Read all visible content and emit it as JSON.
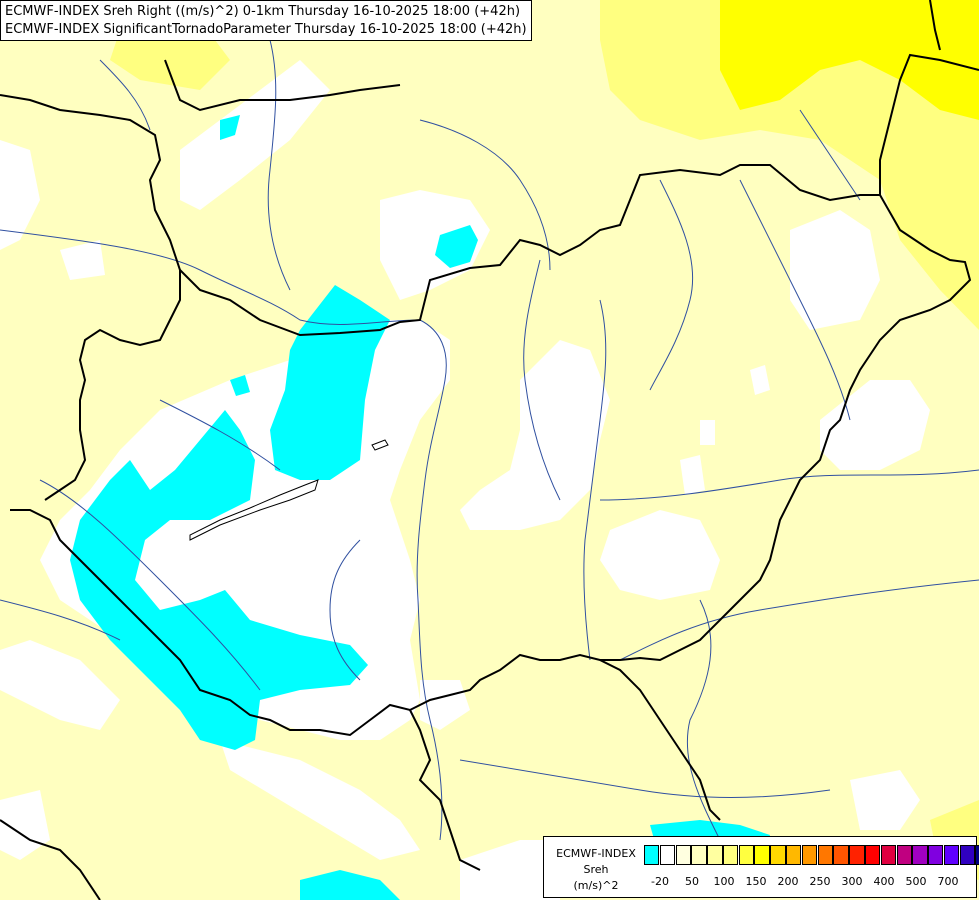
{
  "title": {
    "line1": "ECMWF-INDEX Sreh Right ((m/s)^2) 0-1km Thursday 16-10-2025 18:00 (+42h)",
    "line2": "ECMWF-INDEX SignificantTornadoParameter Thursday 16-10-2025 18:00 (+42h)"
  },
  "legend": {
    "line1": "ECMWF-INDEX",
    "line2": "Sreh",
    "line3": "(m/s)^2",
    "colors": [
      "#00ffff",
      "#ffffff",
      "#ffffe0",
      "#ffffc0",
      "#ffffa0",
      "#ffff80",
      "#ffff40",
      "#ffff00",
      "#ffd800",
      "#ffb800",
      "#ff9900",
      "#ff7700",
      "#ff5500",
      "#ff2200",
      "#ff0000",
      "#e00040",
      "#c00080",
      "#a000c0",
      "#8000e0",
      "#6000ff",
      "#3000c0",
      "#000080"
    ],
    "ticks": [
      "-20",
      "50",
      "100",
      "150",
      "200",
      "250",
      "300",
      "400",
      "500",
      "700"
    ]
  },
  "colors": {
    "field_base": "#ffffc0",
    "low_white": "#ffffff",
    "negative_cyan": "#00ffff",
    "high_yellow": "#ffff80",
    "higher_yellow": "#ffff00",
    "border": "#000000",
    "river": "#3050a0"
  }
}
